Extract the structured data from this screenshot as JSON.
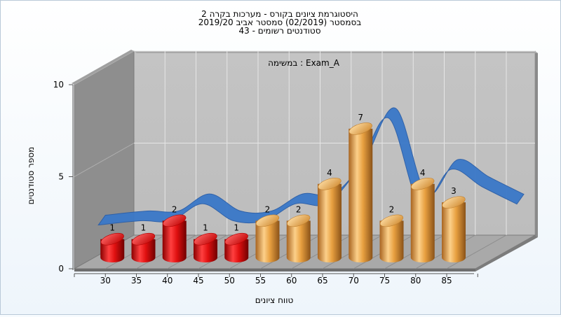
{
  "chart_data": {
    "type": "bar",
    "title": "היסטוגרמת ציונים בקורס - מערכות בקרה 2",
    "subtitle_1": "בסמסטר  (02/2019)  סמסטר אביב 2019/20",
    "subtitle_2": "סטודנטים רשומים - 43",
    "annotation": "במשימה : Exam_A",
    "xlabel": "טווח ציונים",
    "ylabel": "מספר סטודנטים",
    "ylim": [
      0,
      10
    ],
    "y_ticks": [
      "0",
      "5",
      "10"
    ],
    "categories": [
      "30",
      "35",
      "40",
      "45",
      "50",
      "55",
      "60",
      "65",
      "70",
      "75",
      "80",
      "85"
    ],
    "values": [
      1,
      1,
      2,
      1,
      1,
      2,
      2,
      4,
      7,
      2,
      4,
      3
    ],
    "colors": [
      "#e01010",
      "#e01010",
      "#e01010",
      "#e01010",
      "#e01010",
      "#e8a040",
      "#e8a040",
      "#e8a040",
      "#e8a040",
      "#e8a040",
      "#e8a040",
      "#e8a040"
    ],
    "curve_color": "#3a78c8",
    "grid": true
  }
}
